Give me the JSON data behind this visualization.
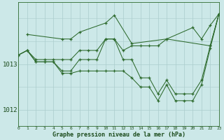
{
  "line_color": "#2d6a2d",
  "bg_color": "#cce8e8",
  "grid_color_major": "#aacccc",
  "xlabel": "Graphe pression niveau de la mer (hPa)",
  "yticks": [
    1012,
    1013
  ],
  "ylim": [
    1011.65,
    1014.35
  ],
  "xlim": [
    0,
    23
  ],
  "figsize": [
    3.2,
    2.0
  ],
  "dpi": 100,
  "top_line": {
    "x": [
      1,
      5,
      6,
      7,
      10,
      11,
      13,
      17,
      20,
      21,
      22,
      23
    ],
    "y": [
      1013.65,
      1013.55,
      1013.55,
      1013.7,
      1013.9,
      1014.07,
      1013.45,
      1013.55,
      1013.8,
      1013.55,
      1013.85,
      1014.1
    ]
  },
  "upper_mid_line": {
    "x": [
      0,
      1,
      2,
      3,
      4,
      5,
      6,
      7,
      8,
      9,
      10,
      11,
      12,
      13,
      14,
      15,
      16,
      17,
      22,
      23
    ],
    "y": [
      1013.2,
      1013.3,
      1013.1,
      1013.1,
      1013.1,
      1013.1,
      1013.1,
      1013.3,
      1013.3,
      1013.3,
      1013.55,
      1013.55,
      1013.3,
      1013.4,
      1013.4,
      1013.4,
      1013.4,
      1013.55,
      1013.4,
      1014.1
    ]
  },
  "lower_mid_line": {
    "x": [
      0,
      1,
      2,
      3,
      4,
      5,
      6,
      7,
      8,
      9,
      10,
      11,
      12,
      13,
      14,
      15,
      16,
      17,
      18,
      19,
      20,
      21,
      22,
      23
    ],
    "y": [
      1013.2,
      1013.3,
      1013.05,
      1013.05,
      1013.05,
      1012.85,
      1012.85,
      1013.1,
      1013.1,
      1013.1,
      1013.55,
      1013.55,
      1013.1,
      1013.1,
      1012.7,
      1012.7,
      1012.35,
      1012.65,
      1012.35,
      1012.35,
      1012.35,
      1012.65,
      1013.4,
      1014.1
    ]
  },
  "bottom_line": {
    "x": [
      0,
      1,
      2,
      3,
      4,
      5,
      6,
      7,
      8,
      9,
      10,
      11,
      12,
      13,
      14,
      15,
      16,
      17,
      18,
      19,
      20,
      21,
      22,
      23
    ],
    "y": [
      1013.2,
      1013.3,
      1013.05,
      1013.05,
      1013.05,
      1012.8,
      1012.8,
      1012.85,
      1012.85,
      1012.85,
      1012.85,
      1012.85,
      1012.85,
      1012.7,
      1012.5,
      1012.5,
      1012.2,
      1012.55,
      1012.2,
      1012.2,
      1012.2,
      1012.55,
      1013.35,
      1014.1
    ]
  }
}
